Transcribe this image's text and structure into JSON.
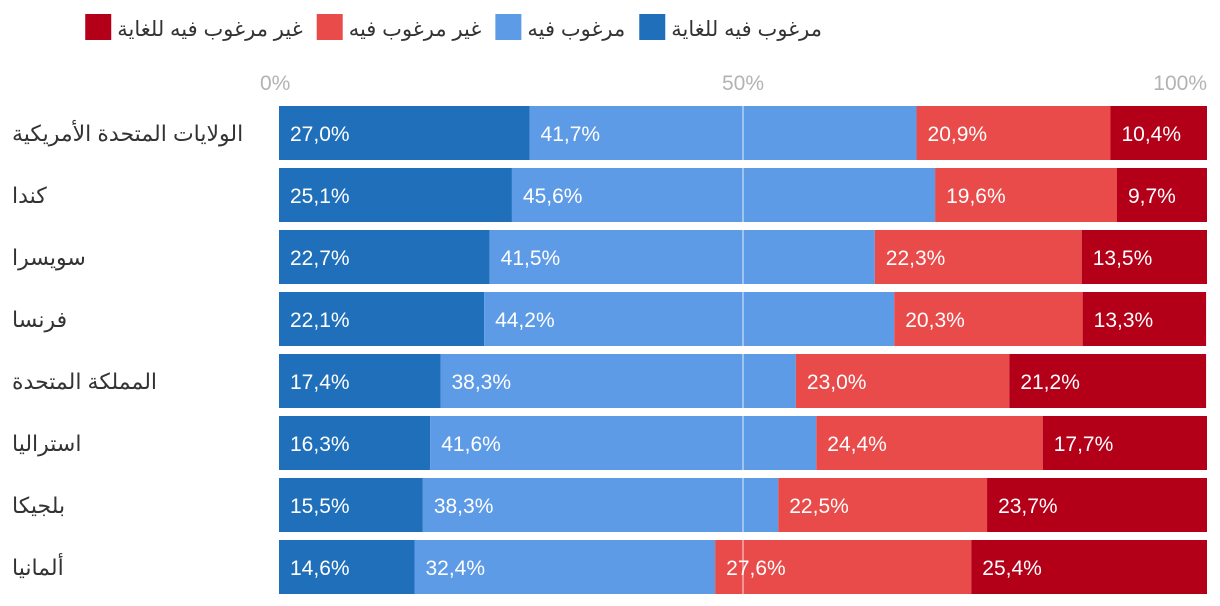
{
  "chart_data": {
    "type": "bar",
    "orientation": "horizontal",
    "stacked": "100%",
    "title": "",
    "xlabel": "",
    "ylabel": "",
    "xlim": [
      0,
      100
    ],
    "x_ticks": [
      "0%",
      "50%",
      "100%"
    ],
    "grid": true,
    "legend_position": "top",
    "categories": [
      "الولايات المتحدة الأمريكية",
      "كندا",
      "سويسرا",
      "فرنسا",
      "المملكة المتحدة",
      "استراليا",
      "بلجيكا",
      "ألمانيا"
    ],
    "series": [
      {
        "name": "مرغوب فيه للغاية",
        "color": "#1f6fba",
        "values": [
          27.0,
          25.1,
          22.7,
          22.1,
          17.4,
          16.3,
          15.5,
          14.6
        ],
        "labels": [
          "27,0%",
          "25,1%",
          "22,7%",
          "22,1%",
          "17,4%",
          "16,3%",
          "15,5%",
          "14,6%"
        ]
      },
      {
        "name": "مرغوب فيه",
        "color": "#5e9be6",
        "values": [
          41.7,
          45.6,
          41.5,
          44.2,
          38.3,
          41.6,
          38.3,
          32.4
        ],
        "labels": [
          "41,7%",
          "45,6%",
          "41,5%",
          "44,2%",
          "38,3%",
          "41,6%",
          "38,3%",
          "32,4%"
        ]
      },
      {
        "name": "غير مرغوب فيه",
        "color": "#e94a4a",
        "values": [
          20.9,
          19.6,
          22.3,
          20.3,
          23.0,
          24.4,
          22.5,
          27.6
        ],
        "labels": [
          "20,9%",
          "19,6%",
          "22,3%",
          "20,3%",
          "23,0%",
          "24,4%",
          "22,5%",
          "27,6%"
        ]
      },
      {
        "name": "غير مرغوب فيه للغاية",
        "color": "#b30018",
        "values": [
          10.4,
          9.7,
          13.5,
          13.3,
          21.2,
          17.7,
          23.7,
          25.4
        ],
        "labels": [
          "10,4%",
          "9,7%",
          "13,5%",
          "13,3%",
          "21,2%",
          "17,7%",
          "23,7%",
          "25,4%"
        ]
      }
    ]
  }
}
